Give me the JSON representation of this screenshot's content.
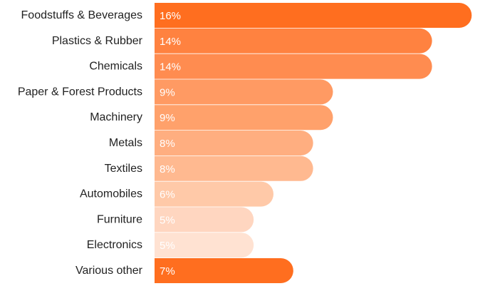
{
  "chart_data": {
    "type": "bar",
    "orientation": "horizontal",
    "categories": [
      "Foodstuffs & Beverages",
      "Plastics & Rubber",
      "Chemicals",
      "Paper & Forest Products",
      "Machinery",
      "Metals",
      "Textiles",
      "Automobiles",
      "Furniture",
      "Electronics",
      "Various other"
    ],
    "values": [
      16,
      14,
      14,
      9,
      9,
      8,
      8,
      6,
      5,
      5,
      7
    ],
    "value_labels": [
      "16%",
      "14%",
      "14%",
      "9%",
      "9%",
      "8%",
      "8%",
      "6%",
      "5%",
      "5%",
      "7%"
    ],
    "bar_colors": [
      "#FF6E1F",
      "#FF8240",
      "#FF8C50",
      "#FF9A63",
      "#FFA16B",
      "#FFAE80",
      "#FFB990",
      "#FFC9A8",
      "#FFD6C0",
      "#FFE2D2",
      "#FF6E1F"
    ],
    "xlim": [
      0,
      16.6
    ],
    "title": "",
    "xlabel": "",
    "ylabel": "",
    "grid": false,
    "legend": "none"
  }
}
